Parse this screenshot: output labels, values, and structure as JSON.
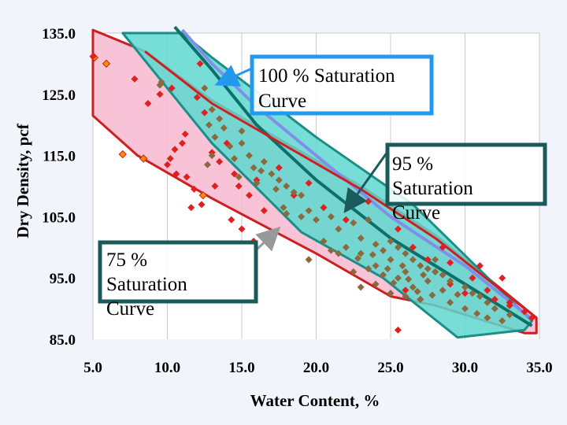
{
  "chart_data": {
    "type": "scatter",
    "xlabel": "Water Content, %",
    "ylabel": "Dry Density, pcf",
    "xlim": [
      5.0,
      35.0
    ],
    "ylim": [
      85.0,
      135.0
    ],
    "x_ticks": [
      "5.0",
      "10.0",
      "15.0",
      "20.0",
      "25.0",
      "30.0",
      "35.0"
    ],
    "y_ticks": [
      "135.0",
      "125.0",
      "115.0",
      "105.0",
      "95.0",
      "85.0"
    ],
    "grid": "vertical",
    "colors": {
      "plot_bg": "#ffffff",
      "grid": "#c8c8c8",
      "outer_band_fill": "#f7b8d0",
      "outer_band_stroke": "#cc2020",
      "inner_band_fill": "#5ed8d0",
      "inner_band_stroke": "#1a8f88",
      "inner_band_edge": "#0c6f68",
      "saturation_100_line": "#8090e8",
      "saturation_95_line": "#0c6f68",
      "saturation_75_line": "#cc2020",
      "point_orange": "#ff8c00",
      "point_red": "#e02020",
      "point_brown": "#8a6a3c",
      "callout_100_border": "#2299ee",
      "callout_dark_border": "#1a5a5a"
    },
    "outer_band": [
      [
        5.0,
        135.5
      ],
      [
        8.5,
        132.0
      ],
      [
        13.0,
        124.0
      ],
      [
        18.0,
        117.0
      ],
      [
        23.0,
        110.0
      ],
      [
        28.0,
        102.0
      ],
      [
        34.8,
        88.5
      ],
      [
        34.8,
        86.0
      ],
      [
        34.0,
        86.0
      ],
      [
        28.0,
        90.5
      ],
      [
        25.0,
        92.0
      ],
      [
        20.0,
        99.0
      ],
      [
        13.0,
        108.0
      ],
      [
        8.0,
        115.0
      ],
      [
        5.0,
        121.5
      ]
    ],
    "inner_band": [
      [
        7.0,
        135.0
      ],
      [
        11.0,
        135.0
      ],
      [
        13.0,
        131.0
      ],
      [
        20.0,
        118.0
      ],
      [
        26.5,
        107.0
      ],
      [
        34.5,
        88.0
      ],
      [
        34.0,
        86.5
      ],
      [
        29.5,
        85.3
      ],
      [
        24.5,
        95.0
      ],
      [
        19.0,
        102.5
      ],
      [
        13.0,
        117.0
      ],
      [
        9.0,
        129.0
      ]
    ],
    "series": [
      {
        "name": "100 % Saturation Curve",
        "type": "line",
        "points": [
          [
            11.0,
            135.5
          ],
          [
            13.0,
            130.0
          ],
          [
            16.0,
            123.0
          ],
          [
            20.0,
            115.0
          ],
          [
            25.0,
            105.0
          ],
          [
            30.0,
            97.0
          ],
          [
            34.5,
            88.3
          ]
        ]
      },
      {
        "name": "95 % Saturation Curve",
        "type": "line",
        "points": [
          [
            10.5,
            136.0
          ],
          [
            13.0,
            129.0
          ],
          [
            16.0,
            120.0
          ],
          [
            20.0,
            111.0
          ],
          [
            25.0,
            101.5
          ],
          [
            30.0,
            94.0
          ],
          [
            34.5,
            87.2
          ]
        ]
      },
      {
        "name": "75 % Saturation Curve",
        "type": "line",
        "points": [
          [
            8.5,
            132.0
          ],
          [
            13.0,
            123.5
          ],
          [
            18.0,
            116.5
          ],
          [
            23.0,
            109.5
          ],
          [
            28.0,
            101.5
          ],
          [
            34.8,
            88.5
          ]
        ]
      },
      {
        "name": "",
        "type": "scatter",
        "color": "orange",
        "points": [
          [
            5.1,
            131.0
          ],
          [
            5.9,
            130.0
          ],
          [
            7.0,
            115.2
          ],
          [
            8.4,
            114.5
          ],
          [
            12.4,
            108.5
          ]
        ]
      },
      {
        "name": "",
        "type": "scatter",
        "color": "red",
        "points": [
          [
            5.0,
            131.2
          ],
          [
            7.8,
            127.5
          ],
          [
            8.7,
            123.5
          ],
          [
            9.5,
            125.0
          ],
          [
            10.3,
            126.0
          ],
          [
            12.2,
            130.0
          ],
          [
            12.0,
            124.5
          ],
          [
            12.5,
            122.0
          ],
          [
            11.2,
            118.5
          ],
          [
            11.0,
            117.0
          ],
          [
            10.5,
            116.0
          ],
          [
            10.2,
            114.5
          ],
          [
            10.0,
            113.5
          ],
          [
            10.6,
            112.0
          ],
          [
            11.3,
            111.5
          ],
          [
            11.8,
            109.5
          ],
          [
            12.3,
            107.0
          ],
          [
            11.6,
            106.5
          ],
          [
            13.0,
            115.5
          ],
          [
            13.5,
            114.0
          ],
          [
            14.0,
            117.0
          ],
          [
            14.5,
            112.0
          ],
          [
            13.2,
            110.0
          ],
          [
            14.8,
            110.0
          ],
          [
            15.5,
            108.5
          ],
          [
            14.3,
            104.5
          ],
          [
            15.0,
            103.0
          ],
          [
            17.5,
            113.0
          ],
          [
            16.0,
            111.0
          ],
          [
            15.8,
            101.0
          ],
          [
            16.5,
            106.0
          ],
          [
            18.5,
            108.5
          ],
          [
            19.5,
            110.5
          ],
          [
            20.5,
            106.5
          ],
          [
            22.0,
            104.5
          ],
          [
            23.5,
            107.5
          ],
          [
            25.5,
            103.0
          ],
          [
            26.5,
            100.0
          ],
          [
            27.5,
            98.0
          ],
          [
            28.0,
            96.0
          ],
          [
            29.0,
            94.0
          ],
          [
            30.0,
            92.5
          ],
          [
            30.5,
            95.0
          ],
          [
            31.0,
            97.0
          ],
          [
            31.5,
            93.0
          ],
          [
            32.0,
            91.5
          ],
          [
            33.0,
            90.5
          ],
          [
            34.0,
            89.5
          ],
          [
            34.5,
            88.5
          ],
          [
            29.0,
            97.5
          ],
          [
            25.5,
            86.5
          ],
          [
            27.0,
            91.5
          ],
          [
            26.0,
            93.0
          ],
          [
            33.0,
            91.0
          ],
          [
            28.5,
            100.0
          ],
          [
            32.5,
            95.0
          ]
        ]
      },
      {
        "name": "",
        "type": "scatter",
        "color": "brown",
        "points": [
          [
            9.5,
            126.5
          ],
          [
            9.6,
            127.0
          ],
          [
            12.5,
            126.0
          ],
          [
            13.0,
            122.5
          ],
          [
            13.5,
            121.0
          ],
          [
            12.8,
            120.0
          ],
          [
            13.2,
            118.0
          ],
          [
            13.8,
            119.5
          ],
          [
            14.2,
            116.5
          ],
          [
            13.0,
            115.0
          ],
          [
            12.7,
            113.5
          ],
          [
            14.5,
            114.5
          ],
          [
            15.0,
            117.0
          ],
          [
            15.5,
            115.0
          ],
          [
            15.8,
            113.0
          ],
          [
            16.3,
            112.5
          ],
          [
            16.0,
            110.5
          ],
          [
            17.0,
            112.0
          ],
          [
            17.5,
            111.0
          ],
          [
            18.0,
            110.0
          ],
          [
            17.3,
            109.5
          ],
          [
            18.5,
            109.0
          ],
          [
            19.0,
            108.5
          ],
          [
            19.5,
            106.0
          ],
          [
            19.0,
            105.0
          ],
          [
            18.0,
            105.5
          ],
          [
            20.0,
            104.5
          ],
          [
            21.0,
            105.0
          ],
          [
            21.5,
            103.0
          ],
          [
            22.5,
            104.0
          ],
          [
            23.5,
            104.5
          ],
          [
            23.0,
            101.5
          ],
          [
            22.0,
            100.0
          ],
          [
            21.5,
            99.0
          ],
          [
            23.0,
            99.0
          ],
          [
            24.0,
            100.5
          ],
          [
            25.0,
            101.0
          ],
          [
            24.5,
            99.5
          ],
          [
            25.5,
            100.0
          ],
          [
            26.0,
            99.0
          ],
          [
            25.0,
            98.0
          ],
          [
            24.0,
            97.0
          ],
          [
            26.5,
            98.0
          ],
          [
            27.0,
            97.0
          ],
          [
            27.5,
            96.5
          ],
          [
            26.0,
            96.0
          ],
          [
            24.5,
            95.5
          ],
          [
            25.5,
            95.0
          ],
          [
            28.0,
            96.0
          ],
          [
            28.5,
            95.5
          ],
          [
            29.0,
            94.5
          ],
          [
            30.0,
            93.5
          ],
          [
            30.5,
            92.5
          ],
          [
            31.0,
            92.0
          ],
          [
            31.5,
            91.0
          ],
          [
            32.0,
            90.0
          ],
          [
            33.0,
            89.0
          ],
          [
            28.5,
            93.0
          ],
          [
            27.5,
            94.5
          ],
          [
            26.5,
            93.5
          ],
          [
            25.0,
            92.5
          ],
          [
            26.0,
            92.0
          ],
          [
            27.0,
            91.5
          ],
          [
            29.0,
            91.0
          ],
          [
            30.0,
            90.0
          ],
          [
            31.5,
            88.5
          ],
          [
            24.0,
            94.0
          ],
          [
            23.0,
            93.5
          ],
          [
            22.5,
            96.0
          ],
          [
            23.5,
            96.5
          ],
          [
            21.0,
            99.5
          ],
          [
            20.5,
            101.0
          ],
          [
            19.5,
            98.0
          ],
          [
            15.0,
            119.0
          ],
          [
            16.5,
            114.0
          ],
          [
            14.8,
            111.5
          ],
          [
            17.8,
            106.5
          ],
          [
            28.0,
            98.0
          ],
          [
            25.8,
            97.0
          ],
          [
            27.2,
            95.5
          ],
          [
            24.8,
            96.5
          ],
          [
            26.8,
            92.8
          ],
          [
            29.5,
            92.3
          ],
          [
            32.5,
            88.0
          ],
          [
            30.8,
            89.2
          ],
          [
            22.8,
            98.2
          ],
          [
            23.8,
            98.8
          ],
          [
            25.2,
            94.2
          ],
          [
            27.8,
            92.2
          ],
          [
            26.2,
            94.8
          ]
        ]
      }
    ],
    "annotations": [
      {
        "text": "100 % Saturation Curve",
        "lines": [
          "100 % Saturation",
          "Curve"
        ]
      },
      {
        "text": "95 % Saturation Curve",
        "lines": [
          "95 %",
          "Saturation",
          "Curve"
        ]
      },
      {
        "text": "75 % Saturation Curve",
        "lines": [
          "75 %",
          "Saturation",
          "Curve"
        ]
      }
    ]
  }
}
